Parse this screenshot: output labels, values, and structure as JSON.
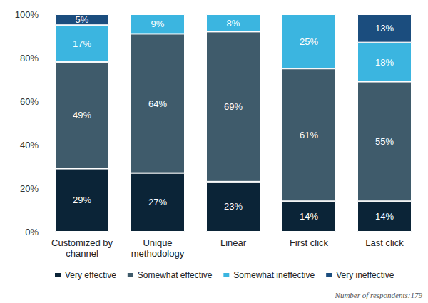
{
  "chart_data": {
    "type": "bar",
    "categories": [
      "Customized by\nchannel",
      "Unique\nmethodology",
      "Linear",
      "First click",
      "Last click"
    ],
    "series": [
      {
        "name": "Very effective",
        "color": "#0b2437",
        "values": [
          29,
          27,
          23,
          14,
          14
        ],
        "value_labels": [
          "29%",
          "27%",
          "23%",
          "14%",
          "14%"
        ]
      },
      {
        "name": "Somewhat effective",
        "color": "#3f5b6b",
        "values": [
          49,
          64,
          69,
          61,
          55
        ],
        "value_labels": [
          "49%",
          "64%",
          "69%",
          "61%",
          "55%"
        ]
      },
      {
        "name": "Somewhat ineffective",
        "color": "#3bb5e0",
        "values": [
          17,
          9,
          8,
          25,
          18
        ],
        "value_labels": [
          "17%",
          "9%",
          "8%",
          "25%",
          "18%"
        ]
      },
      {
        "name": "Very ineffective",
        "color": "#1b4d7e",
        "values": [
          5,
          null,
          null,
          null,
          13
        ],
        "value_labels": [
          "5%",
          null,
          null,
          null,
          "13%"
        ]
      }
    ],
    "ylim": [
      0,
      100
    ],
    "yticks": [
      {
        "value": 0,
        "label": "0%"
      },
      {
        "value": 20,
        "label": "20%"
      },
      {
        "value": 40,
        "label": "40%"
      },
      {
        "value": 60,
        "label": "60%"
      },
      {
        "value": 80,
        "label": "80%"
      },
      {
        "value": 100,
        "label": "100%"
      }
    ],
    "stacked": true,
    "data_labels": true,
    "grid": false,
    "legend": "bottom",
    "annotations": [
      "Number of respondents:179"
    ]
  }
}
